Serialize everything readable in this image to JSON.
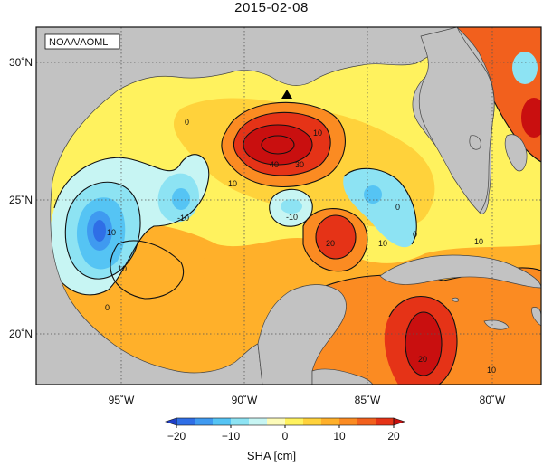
{
  "title": "2015-02-08",
  "credit": "NOAA/AOML",
  "lon_labels": [
    "95˚W",
    "90˚W",
    "85˚W",
    "80˚W"
  ],
  "lat_labels": [
    "30˚N",
    "25˚N",
    "20˚N"
  ],
  "contour_labels": [
    "10",
    "40",
    "30",
    "10",
    "0",
    "10",
    "-10",
    "-10",
    "0",
    "0",
    "10",
    "20",
    "0",
    "10",
    "20",
    "10",
    "10"
  ],
  "colorbar": {
    "title": "SHA [cm]",
    "ticks": [
      "−20",
      "−10",
      "0",
      "10",
      "20"
    ],
    "min": -20,
    "max": 20,
    "colors": [
      "#1f3fc9",
      "#2f6ee6",
      "#3f9af0",
      "#55c4f4",
      "#8de3f3",
      "#c7f5f3",
      "#fdfbb9",
      "#fff25e",
      "#ffd23b",
      "#ffb02a",
      "#fb8b22",
      "#f2601d",
      "#e53317",
      "#c90f0f"
    ]
  },
  "colors": {
    "land": "#c2c2c2",
    "marker": "#000000"
  }
}
